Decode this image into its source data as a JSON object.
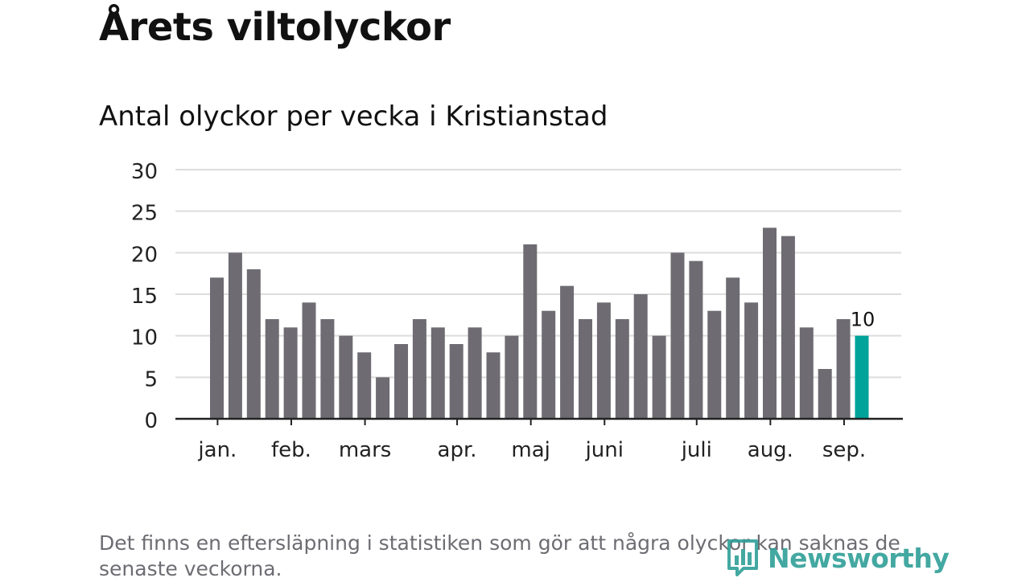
{
  "header": {
    "title": "Årets viltolyckor",
    "subtitle": "Antal olyckor per vecka i Kristianstad"
  },
  "footer": {
    "note": "Det finns en eftersläpning i statistiken som gör att några olyckor kan saknas de senaste veckorna.",
    "brand": "Newsworthy",
    "brand_icon": "bar-chart-logo-icon"
  },
  "colors": {
    "bar": "#6e6c72",
    "highlight": "#00a39a",
    "grid": "#dddddd",
    "axis": "#222222",
    "brand": "#2f9f97"
  },
  "chart_data": {
    "type": "bar",
    "title": "Årets viltolyckor",
    "subtitle": "Antal olyckor per vecka i Kristianstad",
    "xlabel": "",
    "ylabel": "",
    "ylim": [
      0,
      30
    ],
    "yticks": [
      0,
      5,
      10,
      15,
      20,
      25,
      30
    ],
    "grid": true,
    "legend": "none",
    "values": [
      17,
      20,
      18,
      12,
      11,
      14,
      12,
      10,
      8,
      5,
      9,
      12,
      11,
      9,
      11,
      8,
      10,
      21,
      13,
      16,
      12,
      14,
      12,
      15,
      10,
      20,
      19,
      13,
      17,
      14,
      23,
      22,
      11,
      6,
      12,
      10
    ],
    "highlight_index": 35,
    "highlight_label": "10",
    "month_ticks": [
      {
        "label": "jan.",
        "week": 0.3
      },
      {
        "label": "feb.",
        "week": 4.3
      },
      {
        "label": "mars",
        "week": 8.3
      },
      {
        "label": "apr.",
        "week": 13.3
      },
      {
        "label": "maj",
        "week": 17.3
      },
      {
        "label": "juni",
        "week": 21.3
      },
      {
        "label": "juli",
        "week": 26.3
      },
      {
        "label": "aug.",
        "week": 30.3
      },
      {
        "label": "sep.",
        "week": 34.3
      }
    ]
  }
}
